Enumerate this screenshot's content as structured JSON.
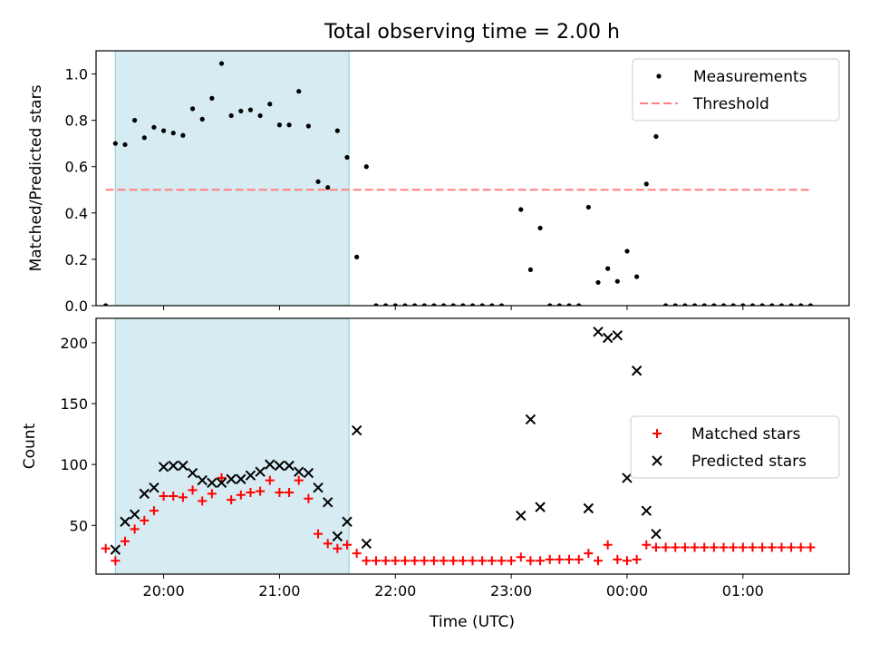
{
  "title": "Total observing time = 2.00 h",
  "xlabel": "Time (UTC)",
  "colors": {
    "shade": "#add8e6",
    "measurement": "#000000",
    "threshold": "#ff7f7f",
    "matched": "#ff0000",
    "predicted": "#000000"
  },
  "chart_data": [
    {
      "type": "scatter",
      "ylabel": "Matched/Predicted stars",
      "xlim": [
        "19:25",
        "01:55"
      ],
      "ylim": [
        0,
        1.1
      ],
      "yticks": [
        "0.0",
        "0.2",
        "0.4",
        "0.6",
        "0.8",
        "1.0"
      ],
      "xticks": [
        "20:00",
        "21:00",
        "22:00",
        "23:00",
        "00:00",
        "01:00"
      ],
      "shaded_interval": [
        "19:35",
        "21:36"
      ],
      "legend": {
        "position": "top-right",
        "entries": [
          "Measurements",
          "Threshold"
        ]
      },
      "threshold": {
        "name": "Threshold",
        "value": 0.5,
        "x_range": [
          "19:30",
          "01:36"
        ]
      },
      "series": [
        {
          "name": "Measurements",
          "points": [
            [
              "19:30",
              0.0
            ],
            [
              "19:35",
              0.7
            ],
            [
              "19:40",
              0.695
            ],
            [
              "19:45",
              0.8
            ],
            [
              "19:50",
              0.725
            ],
            [
              "19:55",
              0.77
            ],
            [
              "20:00",
              0.755
            ],
            [
              "20:05",
              0.745
            ],
            [
              "20:10",
              0.735
            ],
            [
              "20:15",
              0.85
            ],
            [
              "20:20",
              0.805
            ],
            [
              "20:25",
              0.895
            ],
            [
              "20:30",
              1.045
            ],
            [
              "20:35",
              0.82
            ],
            [
              "20:40",
              0.84
            ],
            [
              "20:45",
              0.845
            ],
            [
              "20:50",
              0.82
            ],
            [
              "20:55",
              0.87
            ],
            [
              "21:00",
              0.78
            ],
            [
              "21:05",
              0.78
            ],
            [
              "21:10",
              0.925
            ],
            [
              "21:15",
              0.775
            ],
            [
              "21:20",
              0.535
            ],
            [
              "21:25",
              0.51
            ],
            [
              "21:30",
              0.755
            ],
            [
              "21:35",
              0.64
            ],
            [
              "21:40",
              0.21
            ],
            [
              "21:45",
              0.6
            ],
            [
              "21:50",
              0.0
            ],
            [
              "21:55",
              0.0
            ],
            [
              "22:00",
              0.0
            ],
            [
              "22:05",
              0.0
            ],
            [
              "22:10",
              0.0
            ],
            [
              "22:15",
              0.0
            ],
            [
              "22:20",
              0.0
            ],
            [
              "22:25",
              0.0
            ],
            [
              "22:30",
              0.0
            ],
            [
              "22:35",
              0.0
            ],
            [
              "22:40",
              0.0
            ],
            [
              "22:45",
              0.0
            ],
            [
              "22:50",
              0.0
            ],
            [
              "22:55",
              0.0
            ],
            [
              "23:05",
              0.415
            ],
            [
              "23:10",
              0.155
            ],
            [
              "23:15",
              0.335
            ],
            [
              "23:20",
              0.0
            ],
            [
              "23:25",
              0.0
            ],
            [
              "23:30",
              0.0
            ],
            [
              "23:35",
              0.0
            ],
            [
              "23:40",
              0.425
            ],
            [
              "23:45",
              0.1
            ],
            [
              "23:50",
              0.16
            ],
            [
              "23:55",
              0.105
            ],
            [
              "00:00",
              0.235
            ],
            [
              "00:05",
              0.125
            ],
            [
              "00:10",
              0.525
            ],
            [
              "00:15",
              0.73
            ],
            [
              "00:20",
              0.0
            ],
            [
              "00:25",
              0.0
            ],
            [
              "00:30",
              0.0
            ],
            [
              "00:35",
              0.0
            ],
            [
              "00:40",
              0.0
            ],
            [
              "00:45",
              0.0
            ],
            [
              "00:50",
              0.0
            ],
            [
              "00:55",
              0.0
            ],
            [
              "01:00",
              0.0
            ],
            [
              "01:05",
              0.0
            ],
            [
              "01:10",
              0.0
            ],
            [
              "01:15",
              0.0
            ],
            [
              "01:20",
              0.0
            ],
            [
              "01:25",
              0.0
            ],
            [
              "01:30",
              0.0
            ],
            [
              "01:35",
              0.0
            ]
          ]
        }
      ]
    },
    {
      "type": "scatter",
      "ylabel": "Count",
      "xlim": [
        "19:25",
        "01:55"
      ],
      "ylim": [
        10,
        220
      ],
      "yticks": [
        "50",
        "100",
        "150",
        "200"
      ],
      "xticks": [
        "20:00",
        "21:00",
        "22:00",
        "23:00",
        "00:00",
        "01:00"
      ],
      "shaded_interval": [
        "19:35",
        "21:36"
      ],
      "legend": {
        "position": "center-right",
        "entries": [
          "Matched stars",
          "Predicted stars"
        ]
      },
      "series": [
        {
          "name": "Matched stars",
          "points": [
            [
              "19:30",
              31
            ],
            [
              "19:35",
              21
            ],
            [
              "19:40",
              37
            ],
            [
              "19:45",
              47
            ],
            [
              "19:50",
              54
            ],
            [
              "19:55",
              62
            ],
            [
              "20:00",
              74
            ],
            [
              "20:05",
              74
            ],
            [
              "20:10",
              73
            ],
            [
              "20:15",
              79
            ],
            [
              "20:20",
              70
            ],
            [
              "20:25",
              76
            ],
            [
              "20:30",
              89
            ],
            [
              "20:35",
              71
            ],
            [
              "20:40",
              75
            ],
            [
              "20:45",
              77
            ],
            [
              "20:50",
              78
            ],
            [
              "20:55",
              87
            ],
            [
              "21:00",
              77
            ],
            [
              "21:05",
              77
            ],
            [
              "21:10",
              87
            ],
            [
              "21:15",
              72
            ],
            [
              "21:20",
              43
            ],
            [
              "21:25",
              35
            ],
            [
              "21:30",
              31
            ],
            [
              "21:35",
              34
            ],
            [
              "21:40",
              27
            ],
            [
              "21:45",
              21
            ],
            [
              "21:50",
              21
            ],
            [
              "21:55",
              21
            ],
            [
              "22:00",
              21
            ],
            [
              "22:05",
              21
            ],
            [
              "22:10",
              21
            ],
            [
              "22:15",
              21
            ],
            [
              "22:20",
              21
            ],
            [
              "22:25",
              21
            ],
            [
              "22:30",
              21
            ],
            [
              "22:35",
              21
            ],
            [
              "22:40",
              21
            ],
            [
              "22:45",
              21
            ],
            [
              "22:50",
              21
            ],
            [
              "22:55",
              21
            ],
            [
              "23:00",
              21
            ],
            [
              "23:05",
              24
            ],
            [
              "23:10",
              21
            ],
            [
              "23:15",
              21
            ],
            [
              "23:20",
              22
            ],
            [
              "23:25",
              22
            ],
            [
              "23:30",
              22
            ],
            [
              "23:35",
              22
            ],
            [
              "23:40",
              27
            ],
            [
              "23:45",
              21
            ],
            [
              "23:50",
              34
            ],
            [
              "23:55",
              22
            ],
            [
              "00:00",
              21
            ],
            [
              "00:05",
              22
            ],
            [
              "00:10",
              34
            ],
            [
              "00:15",
              32
            ],
            [
              "00:20",
              32
            ],
            [
              "00:25",
              32
            ],
            [
              "00:30",
              32
            ],
            [
              "00:35",
              32
            ],
            [
              "00:40",
              32
            ],
            [
              "00:45",
              32
            ],
            [
              "00:50",
              32
            ],
            [
              "00:55",
              32
            ],
            [
              "01:00",
              32
            ],
            [
              "01:05",
              32
            ],
            [
              "01:10",
              32
            ],
            [
              "01:15",
              32
            ],
            [
              "01:20",
              32
            ],
            [
              "01:25",
              32
            ],
            [
              "01:30",
              32
            ],
            [
              "01:35",
              32
            ]
          ]
        },
        {
          "name": "Predicted stars",
          "points": [
            [
              "19:35",
              30
            ],
            [
              "19:40",
              53
            ],
            [
              "19:45",
              59
            ],
            [
              "19:50",
              76
            ],
            [
              "19:55",
              81
            ],
            [
              "20:00",
              98
            ],
            [
              "20:05",
              99
            ],
            [
              "20:10",
              99
            ],
            [
              "20:15",
              93
            ],
            [
              "20:20",
              87
            ],
            [
              "20:25",
              85
            ],
            [
              "20:30",
              85
            ],
            [
              "20:35",
              88
            ],
            [
              "20:40",
              88
            ],
            [
              "20:45",
              91
            ],
            [
              "20:50",
              94
            ],
            [
              "20:55",
              100
            ],
            [
              "21:00",
              99
            ],
            [
              "21:05",
              99
            ],
            [
              "21:10",
              94
            ],
            [
              "21:15",
              93
            ],
            [
              "21:20",
              81
            ],
            [
              "21:25",
              69
            ],
            [
              "21:30",
              41
            ],
            [
              "21:35",
              53
            ],
            [
              "21:40",
              128
            ],
            [
              "21:45",
              35
            ],
            [
              "23:05",
              58
            ],
            [
              "23:10",
              137
            ],
            [
              "23:15",
              65
            ],
            [
              "23:40",
              64
            ],
            [
              "23:45",
              209
            ],
            [
              "23:50",
              204
            ],
            [
              "23:55",
              206
            ],
            [
              "00:00",
              89
            ],
            [
              "00:05",
              177
            ],
            [
              "00:10",
              62
            ],
            [
              "00:15",
              43
            ]
          ]
        }
      ]
    }
  ]
}
